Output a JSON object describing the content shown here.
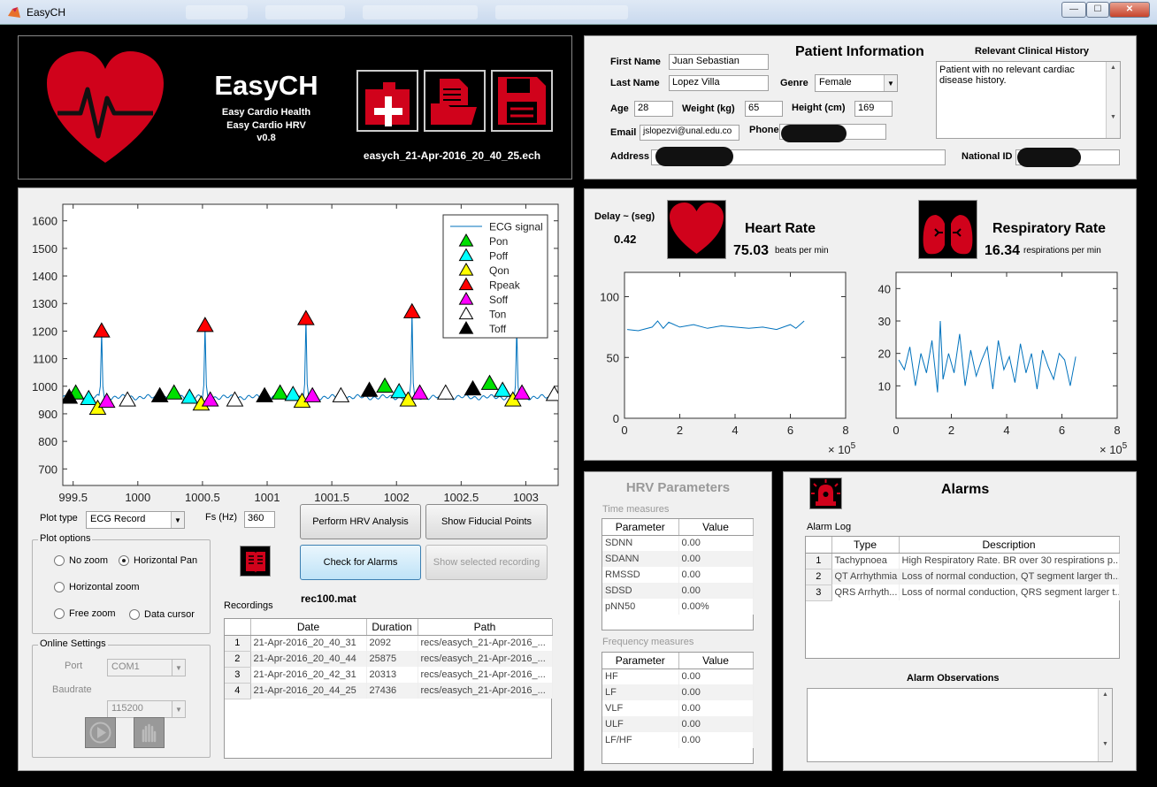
{
  "window": {
    "title": "EasyCH",
    "minimize": "—",
    "maximize": "☐",
    "close": "✕"
  },
  "header": {
    "app_name": "EasyCH",
    "subtitle1": "Easy Cardio Health",
    "subtitle2": "Easy Cardio HRV",
    "version": "v0.8",
    "filename": "easych_21-Apr-2016_20_40_25.ech",
    "icons": [
      "new-record-icon",
      "open-folder-icon",
      "save-icon"
    ]
  },
  "patient": {
    "title": "Patient Information",
    "first_name_label": "First Name",
    "first_name": "Juan Sebastian",
    "last_name_label": "Last Name",
    "last_name": "Lopez Villa",
    "genre_label": "Genre",
    "genre": "Female",
    "age_label": "Age",
    "age": "28",
    "weight_label": "Weight (kg)",
    "weight": "65",
    "height_label": "Height (cm)",
    "height": "169",
    "email_label": "Email",
    "email": "jslopezvi@unal.edu.co",
    "phone_label": "Phone",
    "address_label": "Address",
    "national_id_label": "National ID",
    "history_label": "Relevant Clinical History",
    "history": "Patient with no relevant cardiac disease history."
  },
  "vitals": {
    "delay_label": "Delay ~ (seg)",
    "delay": "0.42",
    "hr_title": "Heart Rate",
    "hr_value": "75.03",
    "hr_unit": "beats per min",
    "rr_title": "Respiratory Rate",
    "rr_value": "16.34",
    "rr_unit": "respirations per min"
  },
  "ecg_controls": {
    "plot_type_label": "Plot type",
    "plot_type": "ECG Record",
    "fs_label": "Fs (Hz)",
    "fs": "360",
    "perform_hrv": "Perform HRV Analysis",
    "show_fiducial": "Show Fiducial Points",
    "check_alarms": "Check for Alarms",
    "show_selected": "Show selected recording",
    "current_file": "rec100.mat",
    "plot_options_title": "Plot options",
    "no_zoom": "No zoom",
    "horizontal_pan": "Horizontal Pan",
    "horizontal_zoom": "Horizontal zoom",
    "free_zoom": "Free zoom",
    "data_cursor": "Data cursor",
    "online_title": "Online Settings",
    "port_label": "Port",
    "port": "COM1",
    "baud_label": "Baudrate",
    "baud": "115200",
    "recordings_label": "Recordings"
  },
  "recordings": {
    "headers": [
      "Date",
      "Duration",
      "Path"
    ],
    "rows": [
      [
        "1",
        "21-Apr-2016_20_40_31",
        "2092",
        "recs/easych_21-Apr-2016_..."
      ],
      [
        "2",
        "21-Apr-2016_20_40_44",
        "25875",
        "recs/easych_21-Apr-2016_..."
      ],
      [
        "3",
        "21-Apr-2016_20_42_31",
        "20313",
        "recs/easych_21-Apr-2016_..."
      ],
      [
        "4",
        "21-Apr-2016_20_44_25",
        "27436",
        "recs/easych_21-Apr-2016_..."
      ]
    ]
  },
  "hrv": {
    "title": "HRV Parameters",
    "time_label": "Time measures",
    "freq_label": "Frequency measures",
    "headers": [
      "Parameter",
      "Value"
    ],
    "time_rows": [
      [
        "SDNN",
        "0.00"
      ],
      [
        "SDANN",
        "0.00"
      ],
      [
        "RMSSD",
        "0.00"
      ],
      [
        "SDSD",
        "0.00"
      ],
      [
        "pNN50",
        "0.00%"
      ]
    ],
    "freq_rows": [
      [
        "HF",
        "0.00"
      ],
      [
        "LF",
        "0.00"
      ],
      [
        "VLF",
        "0.00"
      ],
      [
        "ULF",
        "0.00"
      ],
      [
        "LF/HF",
        "0.00"
      ]
    ]
  },
  "alarms": {
    "title": "Alarms",
    "log_label": "Alarm Log",
    "headers": [
      "Type",
      "Description"
    ],
    "rows": [
      [
        "1",
        "Tachypnoea",
        "High Respiratory Rate. BR over 30 respirations p..."
      ],
      [
        "2",
        "QT Arrhythmia",
        "Loss of normal conduction, QT segment larger th..."
      ],
      [
        "3",
        "QRS Arrhyth...",
        "Loss of normal conduction, QRS segment larger t..."
      ]
    ],
    "observations_label": "Alarm Observations"
  },
  "colors": {
    "heart_red": "#d0021b",
    "ecg_blue": "#0072bd"
  },
  "chart_data": [
    {
      "type": "line",
      "name": "ECG Record",
      "x_ticks": [
        "999.5",
        "1000",
        "1000.5",
        "1001",
        "1001.5",
        "1002",
        "1002.5",
        "1003"
      ],
      "y_ticks": [
        "700",
        "800",
        "900",
        "1000",
        "1100",
        "1200",
        "1300",
        "1400",
        "1500",
        "1600"
      ],
      "xlim": [
        999.42,
        1003.25
      ],
      "ylim": [
        640,
        1660
      ],
      "legend": [
        "ECG signal",
        "Pon",
        "Poff",
        "Qon",
        "Rpeak",
        "Soff",
        "Ton",
        "Toff"
      ],
      "legend_position": "top-right",
      "baseline": 960,
      "r_peaks": [
        [
          999.72,
          1200
        ],
        [
          1000.52,
          1220
        ],
        [
          1001.3,
          1245
        ],
        [
          1002.12,
          1270
        ],
        [
          1002.93,
          1210
        ]
      ],
      "markers": {
        "Pon": [
          [
            999.52,
            975
          ],
          [
            1000.28,
            975
          ],
          [
            1001.1,
            975
          ],
          [
            1001.91,
            1000
          ],
          [
            1002.72,
            1010
          ]
        ],
        "Poff": [
          [
            999.62,
            955
          ],
          [
            1000.4,
            960
          ],
          [
            1001.2,
            970
          ],
          [
            1002.02,
            980
          ],
          [
            1002.82,
            985
          ]
        ],
        "Qon": [
          [
            999.69,
            920
          ],
          [
            1000.49,
            935
          ],
          [
            1001.27,
            945
          ],
          [
            1002.09,
            950
          ],
          [
            1002.9,
            950
          ]
        ],
        "Rpeak": [
          [
            999.72,
            1200
          ],
          [
            1000.52,
            1220
          ],
          [
            1001.3,
            1245
          ],
          [
            1002.12,
            1270
          ]
        ],
        "Soff": [
          [
            999.76,
            945
          ],
          [
            1000.56,
            950
          ],
          [
            1001.35,
            965
          ],
          [
            1002.18,
            975
          ],
          [
            1002.97,
            975
          ]
        ],
        "Ton": [
          [
            999.92,
            950
          ],
          [
            1000.75,
            950
          ],
          [
            1001.57,
            965
          ],
          [
            1002.38,
            975
          ],
          [
            1003.22,
            970
          ]
        ],
        "Toff": [
          [
            999.47,
            960
          ],
          [
            1000.17,
            965
          ],
          [
            1000.98,
            965
          ],
          [
            1001.79,
            985
          ],
          [
            1002.59,
            990
          ]
        ]
      },
      "marker_colors": {
        "Pon": "#00e000",
        "Poff": "#00ffff",
        "Qon": "#ffff00",
        "Rpeak": "#ff0000",
        "Soff": "#ff00ff",
        "Ton": "#ffffff",
        "Toff": "#000000"
      }
    },
    {
      "type": "line",
      "name": "Heart Rate",
      "xlim": [
        0,
        8
      ],
      "ylim": [
        0,
        120
      ],
      "x_ticks": [
        "0",
        "2",
        "4",
        "6",
        "8"
      ],
      "y_ticks": [
        "0",
        "50",
        "100"
      ],
      "x_exponent": "× 10^5",
      "x": [
        0.1,
        0.5,
        1.0,
        1.2,
        1.4,
        1.6,
        2.0,
        2.5,
        3.0,
        3.5,
        4.0,
        4.5,
        5.0,
        5.5,
        6.0,
        6.2,
        6.5
      ],
      "y": [
        73,
        72,
        75,
        80,
        74,
        79,
        75,
        77,
        74,
        76,
        75,
        74,
        75,
        73,
        77,
        74,
        80
      ]
    },
    {
      "type": "line",
      "name": "Respiratory Rate",
      "xlim": [
        0,
        8
      ],
      "ylim": [
        0,
        45
      ],
      "x_ticks": [
        "0",
        "2",
        "4",
        "6",
        "8"
      ],
      "y_ticks": [
        "10",
        "20",
        "30",
        "40"
      ],
      "x_exponent": "× 10^5",
      "x": [
        0.1,
        0.3,
        0.5,
        0.7,
        0.9,
        1.1,
        1.3,
        1.5,
        1.6,
        1.7,
        1.9,
        2.1,
        2.3,
        2.5,
        2.7,
        2.9,
        3.1,
        3.3,
        3.5,
        3.7,
        3.9,
        4.1,
        4.3,
        4.5,
        4.7,
        4.9,
        5.1,
        5.3,
        5.5,
        5.7,
        5.9,
        6.1,
        6.3,
        6.5
      ],
      "y": [
        18,
        15,
        22,
        10,
        20,
        14,
        24,
        8,
        30,
        12,
        20,
        14,
        26,
        10,
        21,
        13,
        18,
        22,
        9,
        24,
        15,
        19,
        11,
        23,
        14,
        20,
        9,
        21,
        16,
        12,
        20,
        18,
        10,
        19
      ]
    }
  ]
}
